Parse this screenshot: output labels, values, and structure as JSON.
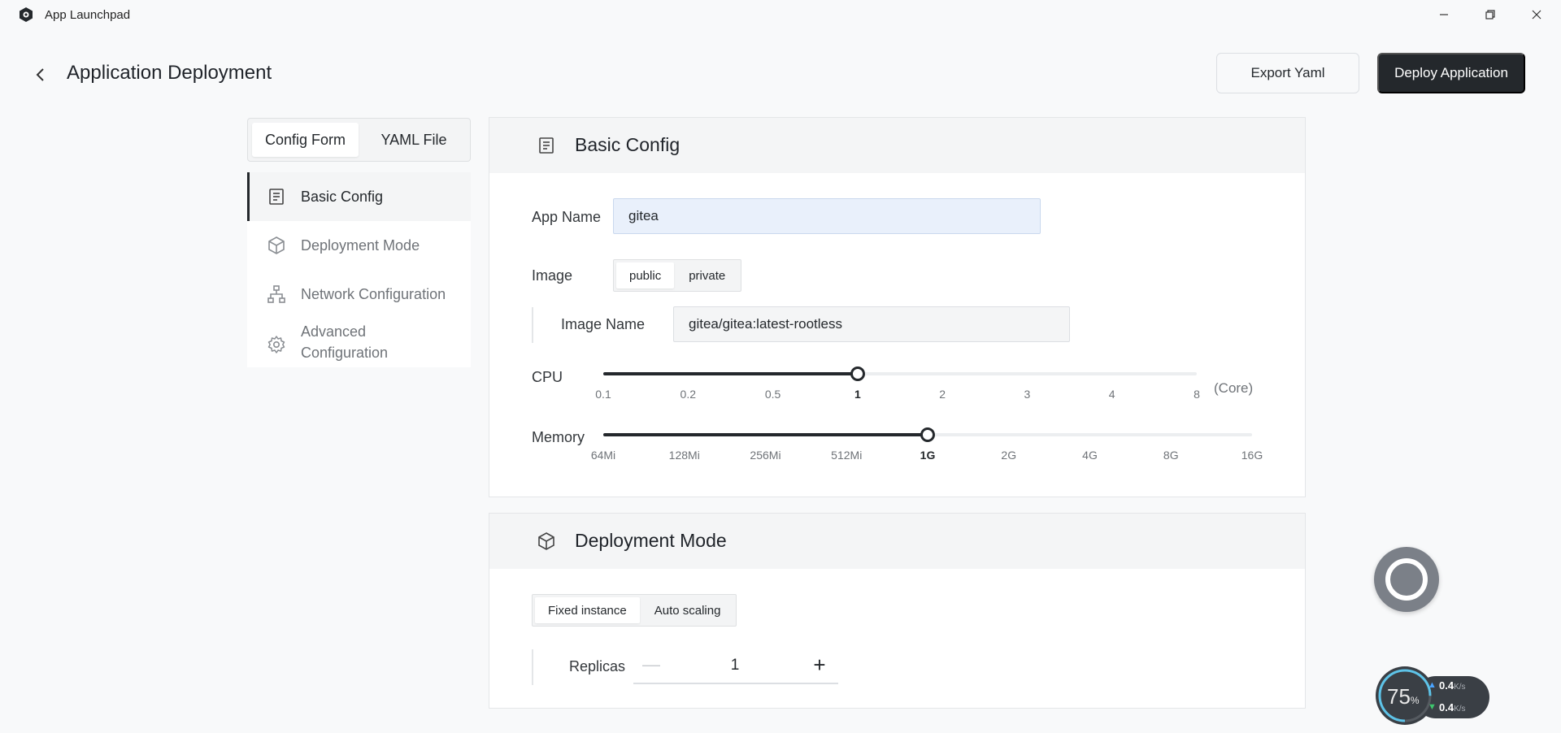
{
  "window": {
    "app_title": "App Launchpad",
    "minimize_icon": "minimize-icon",
    "restore_icon": "restore-icon",
    "close_icon": "close-icon"
  },
  "header": {
    "title": "Application Deployment",
    "export_label": "Export Yaml",
    "deploy_label": "Deploy Application"
  },
  "mode_tabs": [
    {
      "label": "Config Form",
      "active": true
    },
    {
      "label": "YAML File",
      "active": false
    }
  ],
  "nav": {
    "basic": "Basic Config",
    "deployment": "Deployment Mode",
    "network": "Network Configuration",
    "advanced_1": "Advanced",
    "advanced_2": "Configuration"
  },
  "basic_config": {
    "title": "Basic Config",
    "app_name_label": "App Name",
    "app_name_value": "gitea",
    "image_label": "Image",
    "image_options": [
      "public",
      "private"
    ],
    "image_selected": "public",
    "image_name_label": "Image Name",
    "image_name_value": "gitea/gitea:latest-rootless",
    "cpu_label": "CPU",
    "cpu_ticks": [
      "0.1",
      "0.2",
      "0.5",
      "1",
      "2",
      "3",
      "4",
      "8"
    ],
    "cpu_selected": "1",
    "cpu_unit": "(Core)",
    "memory_label": "Memory",
    "memory_ticks": [
      "64Mi",
      "128Mi",
      "256Mi",
      "512Mi",
      "1G",
      "2G",
      "4G",
      "8G",
      "16G"
    ],
    "memory_selected": "1G"
  },
  "deployment_mode": {
    "title": "Deployment Mode",
    "options": [
      "Fixed instance",
      "Auto scaling"
    ],
    "selected": "Fixed instance",
    "replicas_label": "Replicas",
    "replicas_value": "1"
  },
  "monitor": {
    "percent": "75",
    "percent_unit": "%",
    "upload": "0.4",
    "download": "0.4",
    "rate_unit": "K/s"
  },
  "colors": {
    "primary": "#24282c",
    "focused_input": "#e9f0fb",
    "upload_arrow": "#4aa3ff",
    "download_arrow": "#3ec46d"
  }
}
